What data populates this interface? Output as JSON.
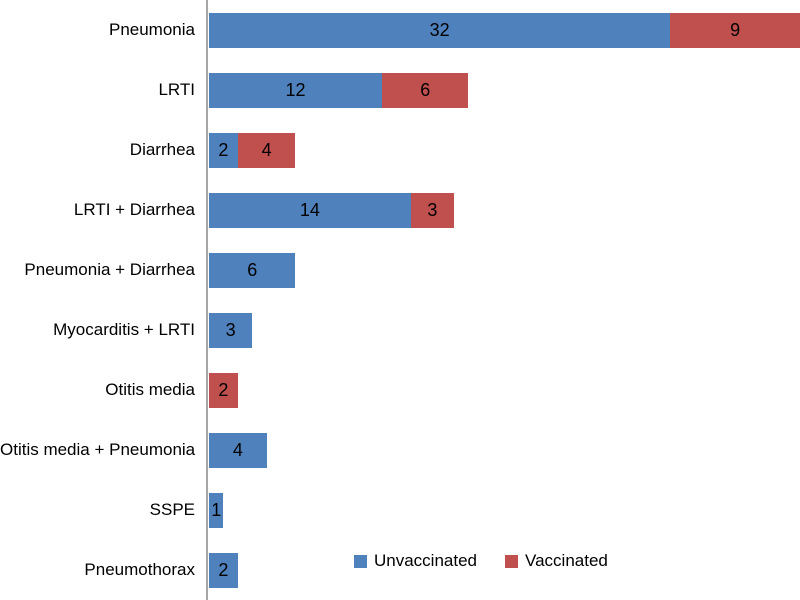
{
  "chart_data": {
    "type": "bar",
    "orientation": "horizontal",
    "stacked": true,
    "title": "",
    "xlabel": "",
    "ylabel": "",
    "gridlines": false,
    "value_labels": true,
    "xlim": [
      0,
      41
    ],
    "legend_position": "bottom-right-inside",
    "categories": [
      "Pneumonia",
      "LRTI",
      "Diarrhea",
      "LRTI + Diarrhea",
      "Pneumonia + Diarrhea",
      "Myocarditis + LRTI",
      "Otitis media",
      "Otitis media + Pneumonia",
      "SSPE",
      "Pneumothorax"
    ],
    "series": [
      {
        "name": "Unvaccinated",
        "color": "#4F81BD",
        "values": [
          32,
          12,
          2,
          14,
          6,
          3,
          0,
          4,
          1,
          2
        ]
      },
      {
        "name": "Vaccinated",
        "color": "#C0504D",
        "values": [
          9,
          6,
          4,
          3,
          0,
          0,
          2,
          0,
          0,
          0
        ]
      }
    ]
  },
  "legend": {
    "items": [
      {
        "label": "Unvaccinated",
        "color": "#4F81BD"
      },
      {
        "label": "Vaccinated",
        "color": "#C0504D"
      }
    ]
  },
  "colors": {
    "unvaccinated": "#4F81BD",
    "vaccinated": "#C0504D",
    "axis_line": "#A6A6A6",
    "text": "#000000",
    "background": "#FFFFFF"
  }
}
